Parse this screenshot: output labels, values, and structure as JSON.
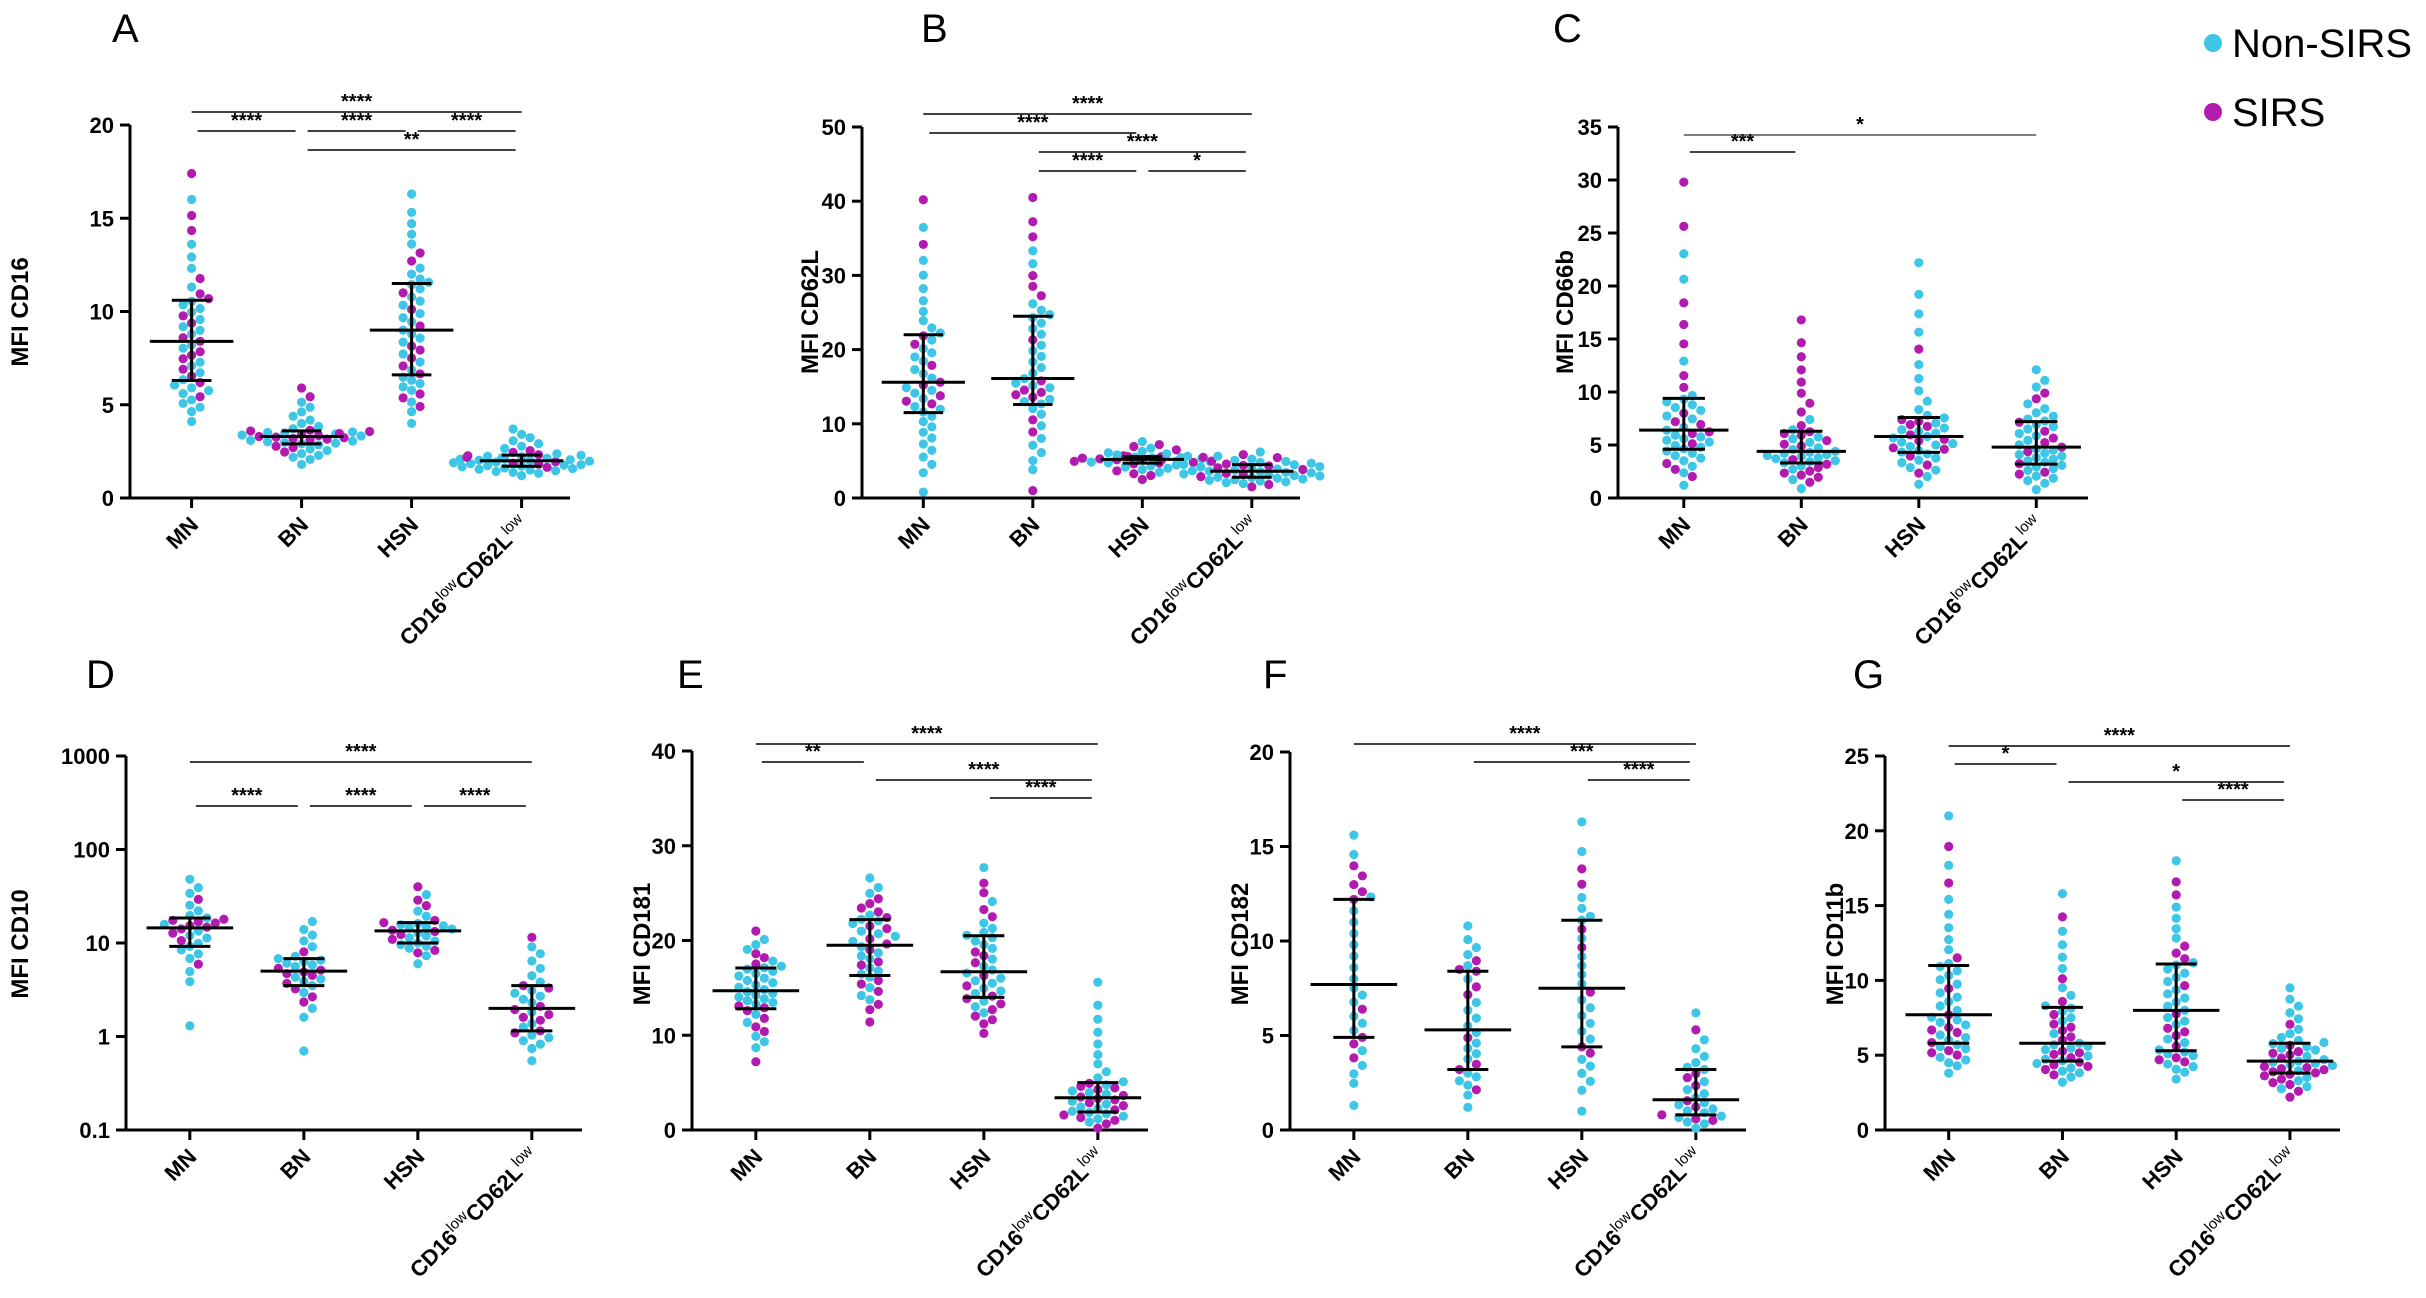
{
  "colors": {
    "non_sirs": "#3ec6e6",
    "sirs": "#b31bb0",
    "axis": "#000000",
    "bracket": "#555555"
  },
  "legend": {
    "items": [
      {
        "label": "Non-SIRS",
        "color": "#3ec6e6"
      },
      {
        "label": "SIRS",
        "color": "#b31bb0"
      }
    ]
  },
  "chart_data": [
    {
      "type": "scatter",
      "panel": "A",
      "ylabel": "MFI CD16",
      "scale": "linear",
      "ylim": [
        0,
        20
      ],
      "yticks": [
        0,
        5,
        10,
        15,
        20
      ],
      "ytick_labels": [
        "0",
        "5",
        "10",
        "15",
        "20"
      ],
      "categories": [
        "MN",
        "BN",
        "HSN",
        "CD16lowCD62Llow"
      ],
      "summary": [
        {
          "median": 8.4,
          "q1": 6.3,
          "q3": 10.6
        },
        {
          "median": 3.3,
          "q1": 2.9,
          "q3": 3.6
        },
        {
          "median": 9.0,
          "q1": 6.6,
          "q3": 11.5
        },
        {
          "median": 2.0,
          "q1": 1.7,
          "q3": 2.3
        }
      ],
      "points": [
        {
          "n": 45,
          "min": 4.1,
          "max": 17.4,
          "median": 8.4,
          "q1": 6.3,
          "q3": 10.6
        },
        {
          "n": 45,
          "min": 1.8,
          "max": 5.9,
          "median": 3.3,
          "q1": 2.9,
          "q3": 3.6
        },
        {
          "n": 45,
          "min": 4.0,
          "max": 16.3,
          "median": 9.0,
          "q1": 6.6,
          "q3": 11.5
        },
        {
          "n": 45,
          "min": 1.2,
          "max": 3.7,
          "median": 2.0,
          "q1": 1.7,
          "q3": 2.3
        }
      ],
      "significance": [
        {
          "from": 0,
          "to": 3,
          "label": "****"
        },
        {
          "from": 0,
          "to": 1,
          "label": "****"
        },
        {
          "from": 1,
          "to": 2,
          "label": "****"
        },
        {
          "from": 2,
          "to": 3,
          "label": "****"
        },
        {
          "from": 1,
          "to": 3,
          "label": "**"
        }
      ]
    },
    {
      "type": "scatter",
      "panel": "B",
      "ylabel": "MFI CD62L",
      "scale": "linear",
      "ylim": [
        0,
        50
      ],
      "yticks": [
        0,
        10,
        20,
        30,
        40,
        50
      ],
      "ytick_labels": [
        "0",
        "10",
        "20",
        "30",
        "40",
        "50"
      ],
      "categories": [
        "MN",
        "BN",
        "HSN",
        "CD16lowCD62Llow"
      ],
      "summary": [
        {
          "median": 15.6,
          "q1": 11.5,
          "q3": 22.0
        },
        {
          "median": 16.1,
          "q1": 12.6,
          "q3": 24.5
        },
        {
          "median": 5.2,
          "q1": 4.7,
          "q3": 5.6
        },
        {
          "median": 3.6,
          "q1": 2.8,
          "q3": 4.5
        }
      ],
      "points": [
        {
          "n": 45,
          "min": 0.8,
          "max": 40.2,
          "median": 15.6,
          "q1": 11.5,
          "q3": 22.0
        },
        {
          "n": 45,
          "min": 1.0,
          "max": 40.5,
          "median": 16.1,
          "q1": 12.6,
          "q3": 24.5
        },
        {
          "n": 45,
          "min": 2.5,
          "max": 7.6,
          "median": 5.2,
          "q1": 4.7,
          "q3": 5.6
        },
        {
          "n": 45,
          "min": 1.5,
          "max": 6.2,
          "median": 3.6,
          "q1": 2.8,
          "q3": 4.5
        }
      ],
      "significance": [
        {
          "from": 0,
          "to": 3,
          "label": "****"
        },
        {
          "from": 0,
          "to": 2,
          "label": "****"
        },
        {
          "from": 1,
          "to": 3,
          "label": "****"
        },
        {
          "from": 1,
          "to": 2,
          "label": "****"
        },
        {
          "from": 2,
          "to": 3,
          "label": "*"
        }
      ]
    },
    {
      "type": "scatter",
      "panel": "C",
      "ylabel": "MFI CD66b",
      "scale": "linear",
      "ylim": [
        0,
        35
      ],
      "yticks": [
        0,
        5,
        10,
        15,
        20,
        25,
        30,
        35
      ],
      "ytick_labels": [
        "0",
        "5",
        "10",
        "15",
        "20",
        "25",
        "30",
        "35"
      ],
      "categories": [
        "MN",
        "BN",
        "HSN",
        "CD16lowCD62Llow"
      ],
      "summary": [
        {
          "median": 6.4,
          "q1": 4.6,
          "q3": 9.4
        },
        {
          "median": 4.4,
          "q1": 3.3,
          "q3": 6.3
        },
        {
          "median": 5.8,
          "q1": 4.3,
          "q3": 7.6
        },
        {
          "median": 4.8,
          "q1": 3.2,
          "q3": 7.2
        }
      ],
      "points": [
        {
          "n": 45,
          "min": 1.2,
          "max": 29.8,
          "median": 6.4,
          "q1": 4.6,
          "q3": 9.4
        },
        {
          "n": 45,
          "min": 0.9,
          "max": 16.8,
          "median": 4.4,
          "q1": 3.3,
          "q3": 6.3
        },
        {
          "n": 45,
          "min": 1.3,
          "max": 22.2,
          "median": 5.8,
          "q1": 4.3,
          "q3": 7.6
        },
        {
          "n": 45,
          "min": 0.8,
          "max": 12.1,
          "median": 4.8,
          "q1": 3.2,
          "q3": 7.2
        }
      ],
      "significance": [
        {
          "from": 0,
          "to": 3,
          "label": "*"
        },
        {
          "from": 0,
          "to": 1,
          "label": "***"
        }
      ]
    },
    {
      "type": "scatter",
      "panel": "D",
      "ylabel": "MFI CD10",
      "scale": "log",
      "ylim": [
        0.1,
        1000
      ],
      "yticks": [
        0.1,
        1,
        10,
        100,
        1000
      ],
      "ytick_labels": [
        "0.1",
        "1",
        "10",
        "100",
        "1000"
      ],
      "categories": [
        "MN",
        "BN",
        "HSN",
        "CD16lowCD62Llow"
      ],
      "summary": [
        {
          "median": 14.5,
          "q1": 9.2,
          "q3": 18.5
        },
        {
          "median": 5.0,
          "q1": 3.5,
          "q3": 6.8
        },
        {
          "median": 13.5,
          "q1": 10.0,
          "q3": 16.5
        },
        {
          "median": 2.0,
          "q1": 1.15,
          "q3": 3.5
        }
      ],
      "points": [
        {
          "n": 30,
          "min": 1.3,
          "max": 48,
          "median": 14.5,
          "q1": 9.2,
          "q3": 18.5
        },
        {
          "n": 30,
          "min": 0.7,
          "max": 17,
          "median": 5.0,
          "q1": 3.5,
          "q3": 6.8
        },
        {
          "n": 30,
          "min": 6.0,
          "max": 40,
          "median": 13.5,
          "q1": 10.0,
          "q3": 16.5
        },
        {
          "n": 30,
          "min": 0.55,
          "max": 11.5,
          "median": 2.0,
          "q1": 1.15,
          "q3": 3.5
        }
      ],
      "significance": [
        {
          "from": 0,
          "to": 3,
          "label": "****"
        },
        {
          "from": 0,
          "to": 1,
          "label": "****"
        },
        {
          "from": 1,
          "to": 2,
          "label": "****"
        },
        {
          "from": 2,
          "to": 3,
          "label": "****"
        }
      ]
    },
    {
      "type": "scatter",
      "panel": "E",
      "ylabel": "MFI CD181",
      "scale": "linear",
      "ylim": [
        0,
        40
      ],
      "yticks": [
        0,
        10,
        20,
        30,
        40
      ],
      "ytick_labels": [
        "0",
        "10",
        "20",
        "30",
        "40"
      ],
      "categories": [
        "MN",
        "BN",
        "HSN",
        "CD16lowCD62Llow"
      ],
      "summary": [
        {
          "median": 14.7,
          "q1": 12.8,
          "q3": 17.1
        },
        {
          "median": 19.5,
          "q1": 16.3,
          "q3": 22.2
        },
        {
          "median": 16.7,
          "q1": 14.0,
          "q3": 20.5
        },
        {
          "median": 3.4,
          "q1": 1.9,
          "q3": 5.0
        }
      ],
      "points": [
        {
          "n": 40,
          "min": 7.2,
          "max": 21.0,
          "median": 14.7,
          "q1": 12.8,
          "q3": 17.1
        },
        {
          "n": 40,
          "min": 11.4,
          "max": 26.6,
          "median": 19.5,
          "q1": 16.3,
          "q3": 22.2
        },
        {
          "n": 40,
          "min": 10.2,
          "max": 27.7,
          "median": 16.7,
          "q1": 14.0,
          "q3": 20.5
        },
        {
          "n": 40,
          "min": 0.2,
          "max": 15.6,
          "median": 3.4,
          "q1": 1.9,
          "q3": 5.0
        }
      ],
      "significance": [
        {
          "from": 0,
          "to": 3,
          "label": "****"
        },
        {
          "from": 0,
          "to": 1,
          "label": "**"
        },
        {
          "from": 1,
          "to": 3,
          "label": "****"
        },
        {
          "from": 2,
          "to": 3,
          "label": "****"
        }
      ]
    },
    {
      "type": "scatter",
      "panel": "F",
      "ylabel": "MFI CD182",
      "scale": "linear",
      "ylim": [
        0,
        20
      ],
      "yticks": [
        0,
        5,
        10,
        15,
        20
      ],
      "ytick_labels": [
        "0",
        "5",
        "10",
        "15",
        "20"
      ],
      "categories": [
        "MN",
        "BN",
        "HSN",
        "CD16lowCD62Llow"
      ],
      "summary": [
        {
          "median": 7.7,
          "q1": 4.9,
          "q3": 12.2
        },
        {
          "median": 5.3,
          "q1": 3.2,
          "q3": 8.4
        },
        {
          "median": 7.5,
          "q1": 4.4,
          "q3": 11.1
        },
        {
          "median": 1.6,
          "q1": 0.8,
          "q3": 3.2
        }
      ],
      "points": [
        {
          "n": 30,
          "min": 1.3,
          "max": 15.6,
          "median": 7.7,
          "q1": 4.9,
          "q3": 12.2
        },
        {
          "n": 30,
          "min": 1.2,
          "max": 10.8,
          "median": 5.3,
          "q1": 3.2,
          "q3": 8.4
        },
        {
          "n": 30,
          "min": 1.0,
          "max": 16.3,
          "median": 7.5,
          "q1": 4.4,
          "q3": 11.1
        },
        {
          "n": 30,
          "min": 0.1,
          "max": 6.2,
          "median": 1.6,
          "q1": 0.8,
          "q3": 3.2
        }
      ],
      "significance": [
        {
          "from": 0,
          "to": 3,
          "label": "****"
        },
        {
          "from": 1,
          "to": 3,
          "label": "***"
        },
        {
          "from": 2,
          "to": 3,
          "label": "****"
        }
      ]
    },
    {
      "type": "scatter",
      "panel": "G",
      "ylabel": "MFI CD11b",
      "scale": "linear",
      "ylim": [
        0,
        25
      ],
      "yticks": [
        0,
        5,
        10,
        15,
        20,
        25
      ],
      "ytick_labels": [
        "0",
        "5",
        "10",
        "15",
        "20",
        "25"
      ],
      "categories": [
        "MN",
        "BN",
        "HSN",
        "CD16lowCD62Llow"
      ],
      "summary": [
        {
          "median": 7.7,
          "q1": 5.8,
          "q3": 11.0
        },
        {
          "median": 5.8,
          "q1": 4.6,
          "q3": 8.2
        },
        {
          "median": 8.0,
          "q1": 5.3,
          "q3": 11.1
        },
        {
          "median": 4.6,
          "q1": 3.8,
          "q3": 5.8
        }
      ],
      "points": [
        {
          "n": 45,
          "min": 3.8,
          "max": 21.0,
          "median": 7.7,
          "q1": 5.8,
          "q3": 11.0
        },
        {
          "n": 45,
          "min": 3.2,
          "max": 15.8,
          "median": 5.8,
          "q1": 4.6,
          "q3": 8.2
        },
        {
          "n": 45,
          "min": 3.4,
          "max": 18.0,
          "median": 8.0,
          "q1": 5.3,
          "q3": 11.1
        },
        {
          "n": 45,
          "min": 2.2,
          "max": 9.5,
          "median": 4.6,
          "q1": 3.8,
          "q3": 5.8
        }
      ],
      "significance": [
        {
          "from": 0,
          "to": 3,
          "label": "****"
        },
        {
          "from": 0,
          "to": 1,
          "label": "*"
        },
        {
          "from": 1,
          "to": 3,
          "label": "*"
        },
        {
          "from": 2,
          "to": 3,
          "label": "****"
        }
      ]
    }
  ]
}
